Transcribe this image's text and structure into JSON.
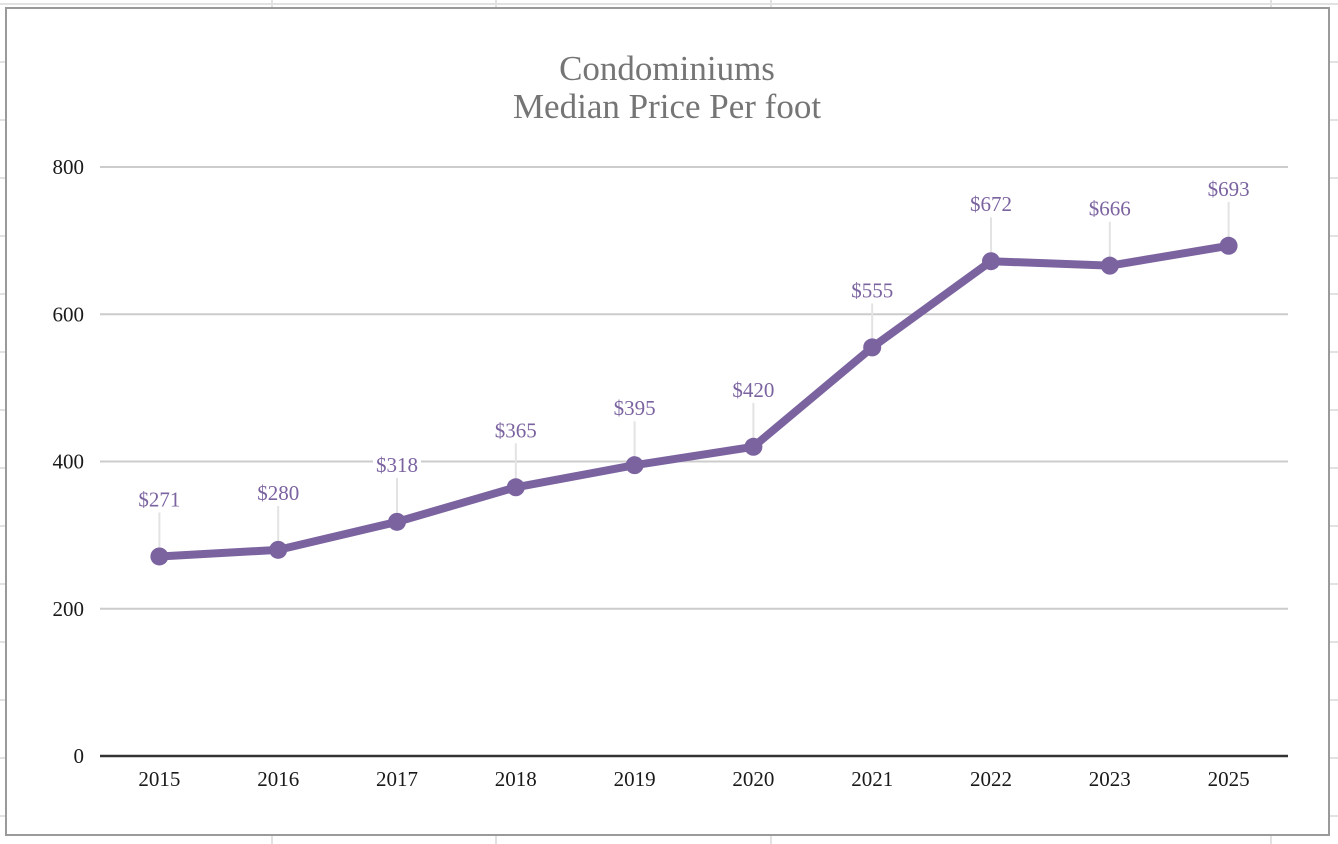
{
  "colors": {
    "series": "#7b63a0",
    "gridline": "#cccccc",
    "axis": "#333333",
    "title": "#757575",
    "tick_text": "#1a1a1a",
    "leader_line": "#e3e3e3",
    "frame_border": "#9a9a9a",
    "sheet_grid": "#e2e2e2"
  },
  "chart_data": {
    "type": "line",
    "title": "Condominiums",
    "subtitle": "Median Price Per foot",
    "xlabel": "",
    "ylabel": "",
    "categories": [
      "2015",
      "2016",
      "2017",
      "2018",
      "2019",
      "2020",
      "2021",
      "2022",
      "2023",
      "2025"
    ],
    "series": [
      {
        "name": "Median Price Per foot",
        "values": [
          271,
          280,
          318,
          365,
          395,
          420,
          555,
          672,
          666,
          693
        ],
        "data_labels": [
          "$271",
          "$280",
          "$318",
          "$365",
          "$395",
          "$420",
          "$555",
          "$672",
          "$666",
          "$693"
        ],
        "markers": true
      }
    ],
    "ylim": [
      0,
      800
    ],
    "yticks": [
      0,
      200,
      400,
      600,
      800
    ],
    "ytick_labels": [
      "0",
      "200",
      "400",
      "600",
      "800"
    ],
    "grid": true,
    "legend": "none"
  }
}
